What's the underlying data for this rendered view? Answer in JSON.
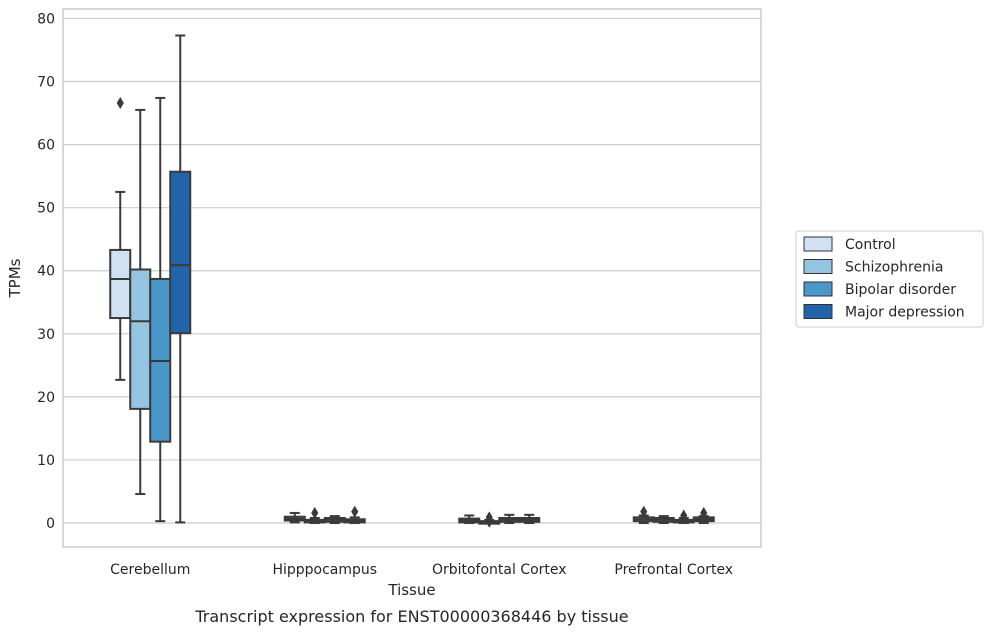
{
  "chart_data": {
    "type": "box",
    "title": "Transcript expression for ENST00000368446 by tissue",
    "xlabel": "Tissue",
    "ylabel": "TPMs",
    "ylim": [
      -3.8,
      81.5
    ],
    "yticks": [
      0,
      10,
      20,
      30,
      40,
      50,
      60,
      70,
      80
    ],
    "grid": true,
    "legend_position": "right",
    "categories": [
      "Cerebellum",
      "Hipppocampus",
      "Orbitofontal Cortex",
      "Prefrontal Cortex"
    ],
    "series": [
      {
        "name": "Control",
        "color": "#d0e1f2",
        "boxes": [
          {
            "whisker_low": 22.7,
            "q1": 32.5,
            "median": 38.7,
            "q3": 43.3,
            "whisker_high": 52.5,
            "outliers": [
              66.6
            ]
          },
          {
            "whisker_low": 0.1,
            "q1": 0.4,
            "median": 0.7,
            "q3": 1.0,
            "whisker_high": 1.6,
            "outliers": []
          },
          {
            "whisker_low": 0.0,
            "q1": 0.1,
            "median": 0.4,
            "q3": 0.7,
            "whisker_high": 1.2,
            "outliers": []
          },
          {
            "whisker_low": 0.0,
            "q1": 0.3,
            "median": 0.6,
            "q3": 0.9,
            "whisker_high": 1.2,
            "outliers": [
              1.8
            ]
          }
        ]
      },
      {
        "name": "Schizophrenia",
        "color": "#94c4df",
        "boxes": [
          {
            "whisker_low": 4.6,
            "q1": 18.1,
            "median": 32.0,
            "q3": 40.2,
            "whisker_high": 65.5,
            "outliers": []
          },
          {
            "whisker_low": 0.0,
            "q1": 0.1,
            "median": 0.3,
            "q3": 0.5,
            "whisker_high": 0.8,
            "outliers": [
              1.6
            ]
          },
          {
            "whisker_low": 0.0,
            "q1": 0.0,
            "median": 0.1,
            "q3": 0.3,
            "whisker_high": 0.5,
            "outliers": [
              0.9,
              0.2
            ]
          },
          {
            "whisker_low": 0.0,
            "q1": 0.2,
            "median": 0.5,
            "q3": 0.8,
            "whisker_high": 1.1,
            "outliers": []
          }
        ]
      },
      {
        "name": "Bipolar disorder",
        "color": "#4a98c9",
        "boxes": [
          {
            "whisker_low": 0.3,
            "q1": 12.9,
            "median": 25.7,
            "q3": 38.7,
            "whisker_high": 67.4,
            "outliers": []
          },
          {
            "whisker_low": 0.0,
            "q1": 0.2,
            "median": 0.5,
            "q3": 0.8,
            "whisker_high": 1.1,
            "outliers": []
          },
          {
            "whisker_low": 0.0,
            "q1": 0.2,
            "median": 0.5,
            "q3": 0.8,
            "whisker_high": 1.3,
            "outliers": []
          },
          {
            "whisker_low": 0.0,
            "q1": 0.1,
            "median": 0.3,
            "q3": 0.5,
            "whisker_high": 0.8,
            "outliers": [
              1.2
            ]
          }
        ]
      },
      {
        "name": "Major depression",
        "color": "#2264a9",
        "boxes": [
          {
            "whisker_low": 0.1,
            "q1": 30.1,
            "median": 40.9,
            "q3": 55.7,
            "whisker_high": 77.3,
            "outliers": []
          },
          {
            "whisker_low": 0.0,
            "q1": 0.1,
            "median": 0.3,
            "q3": 0.6,
            "whisker_high": 0.9,
            "outliers": [
              1.8
            ]
          },
          {
            "whisker_low": 0.0,
            "q1": 0.2,
            "median": 0.5,
            "q3": 0.8,
            "whisker_high": 1.3,
            "outliers": []
          },
          {
            "whisker_low": 0.0,
            "q1": 0.3,
            "median": 0.6,
            "q3": 0.9,
            "whisker_high": 1.1,
            "outliers": [
              1.6
            ]
          }
        ]
      }
    ]
  }
}
